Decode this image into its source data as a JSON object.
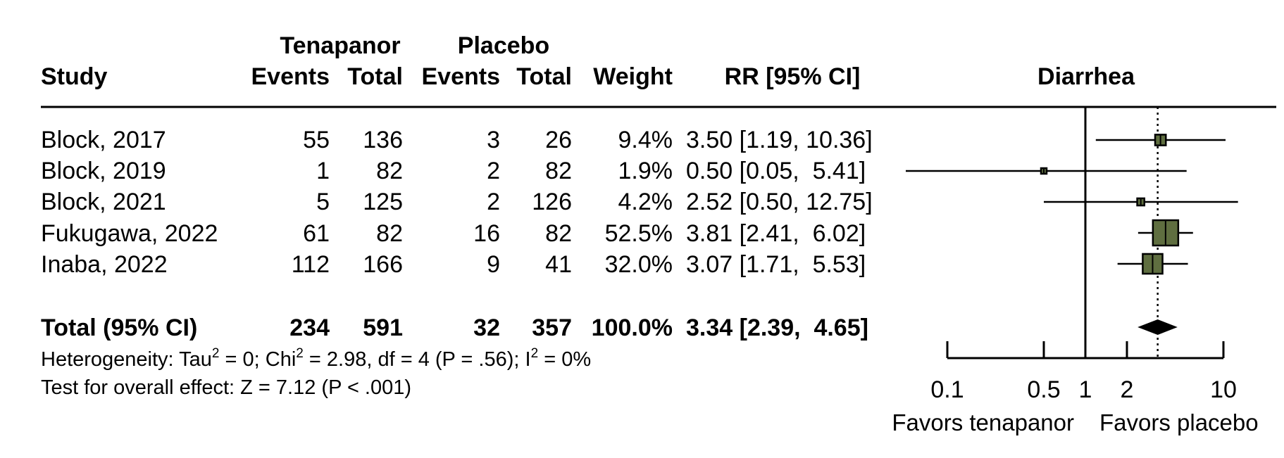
{
  "table": {
    "headers": {
      "study": "Study",
      "group1": "Tenapanor",
      "group2": "Placebo",
      "events": "Events",
      "total": "Total",
      "weight": "Weight",
      "rr": "RR [95% CI]",
      "plot_title": "Diarrhea"
    },
    "rows": [
      {
        "study": "Block, 2017",
        "t_events": "55",
        "t_total": "136",
        "p_events": "3",
        "p_total": "26",
        "weight": "9.4%",
        "rr_text": "3.50 [1.19, 10.36]"
      },
      {
        "study": "Block, 2019",
        "t_events": "1",
        "t_total": "82",
        "p_events": "2",
        "p_total": "82",
        "weight": "1.9%",
        "rr_text": "0.50 [0.05,  5.41]"
      },
      {
        "study": "Block, 2021",
        "t_events": "5",
        "t_total": "125",
        "p_events": "2",
        "p_total": "126",
        "weight": "4.2%",
        "rr_text": "2.52 [0.50, 12.75]"
      },
      {
        "study": "Fukugawa, 2022",
        "t_events": "61",
        "t_total": "82",
        "p_events": "16",
        "p_total": "82",
        "weight": "52.5%",
        "rr_text": "3.81 [2.41,  6.02]"
      },
      {
        "study": "Inaba, 2022",
        "t_events": "112",
        "t_total": "166",
        "p_events": "9",
        "p_total": "41",
        "weight": "32.0%",
        "rr_text": "3.07 [1.71,  5.53]"
      }
    ],
    "total": {
      "study": "Total (95% CI)",
      "t_events": "234",
      "t_total": "591",
      "p_events": "32",
      "p_total": "357",
      "weight": "100.0%",
      "rr_text": "3.34 [2.39,  4.65]"
    }
  },
  "footer": {
    "het_a": "Heterogeneity: Tau",
    "het_sup1": "2",
    "het_b": " = 0; Chi",
    "het_sup2": "2",
    "het_c": " = 2.98, df = 4 (P = .56); I",
    "het_sup3": "2",
    "het_d": " = 0%",
    "overall": "Test for overall effect: Z = 7.12 (P < .001)"
  },
  "axis": {
    "favors_left": "Favors tenapanor",
    "favors_right": "Favors placebo"
  },
  "colors": {
    "square_fill": "#5f6e40",
    "line": "#000000",
    "diamond": "#000000"
  },
  "chart_data": {
    "type": "forest",
    "scale": "log",
    "xlim": [
      0.1,
      10
    ],
    "ticks": [
      0.1,
      0.5,
      1,
      2,
      10
    ],
    "tick_labels": [
      "0.1",
      "0.5",
      "1",
      "2",
      "10"
    ],
    "reference_line": 1,
    "title": "Diarrhea",
    "xlabel": "",
    "studies": [
      {
        "label": "Block, 2017",
        "rr": 3.5,
        "ci_low": 1.19,
        "ci_high": 10.36,
        "weight": 9.4
      },
      {
        "label": "Block, 2019",
        "rr": 0.5,
        "ci_low": 0.05,
        "ci_high": 5.41,
        "weight": 1.9
      },
      {
        "label": "Block, 2021",
        "rr": 2.52,
        "ci_low": 0.5,
        "ci_high": 12.75,
        "weight": 4.2
      },
      {
        "label": "Fukugawa, 2022",
        "rr": 3.81,
        "ci_low": 2.41,
        "ci_high": 6.02,
        "weight": 52.5
      },
      {
        "label": "Inaba, 2022",
        "rr": 3.07,
        "ci_low": 1.71,
        "ci_high": 5.53,
        "weight": 32.0
      }
    ],
    "pooled": {
      "label": "Total (95% CI)",
      "rr": 3.34,
      "ci_low": 2.39,
      "ci_high": 4.65,
      "weight": 100.0
    }
  }
}
